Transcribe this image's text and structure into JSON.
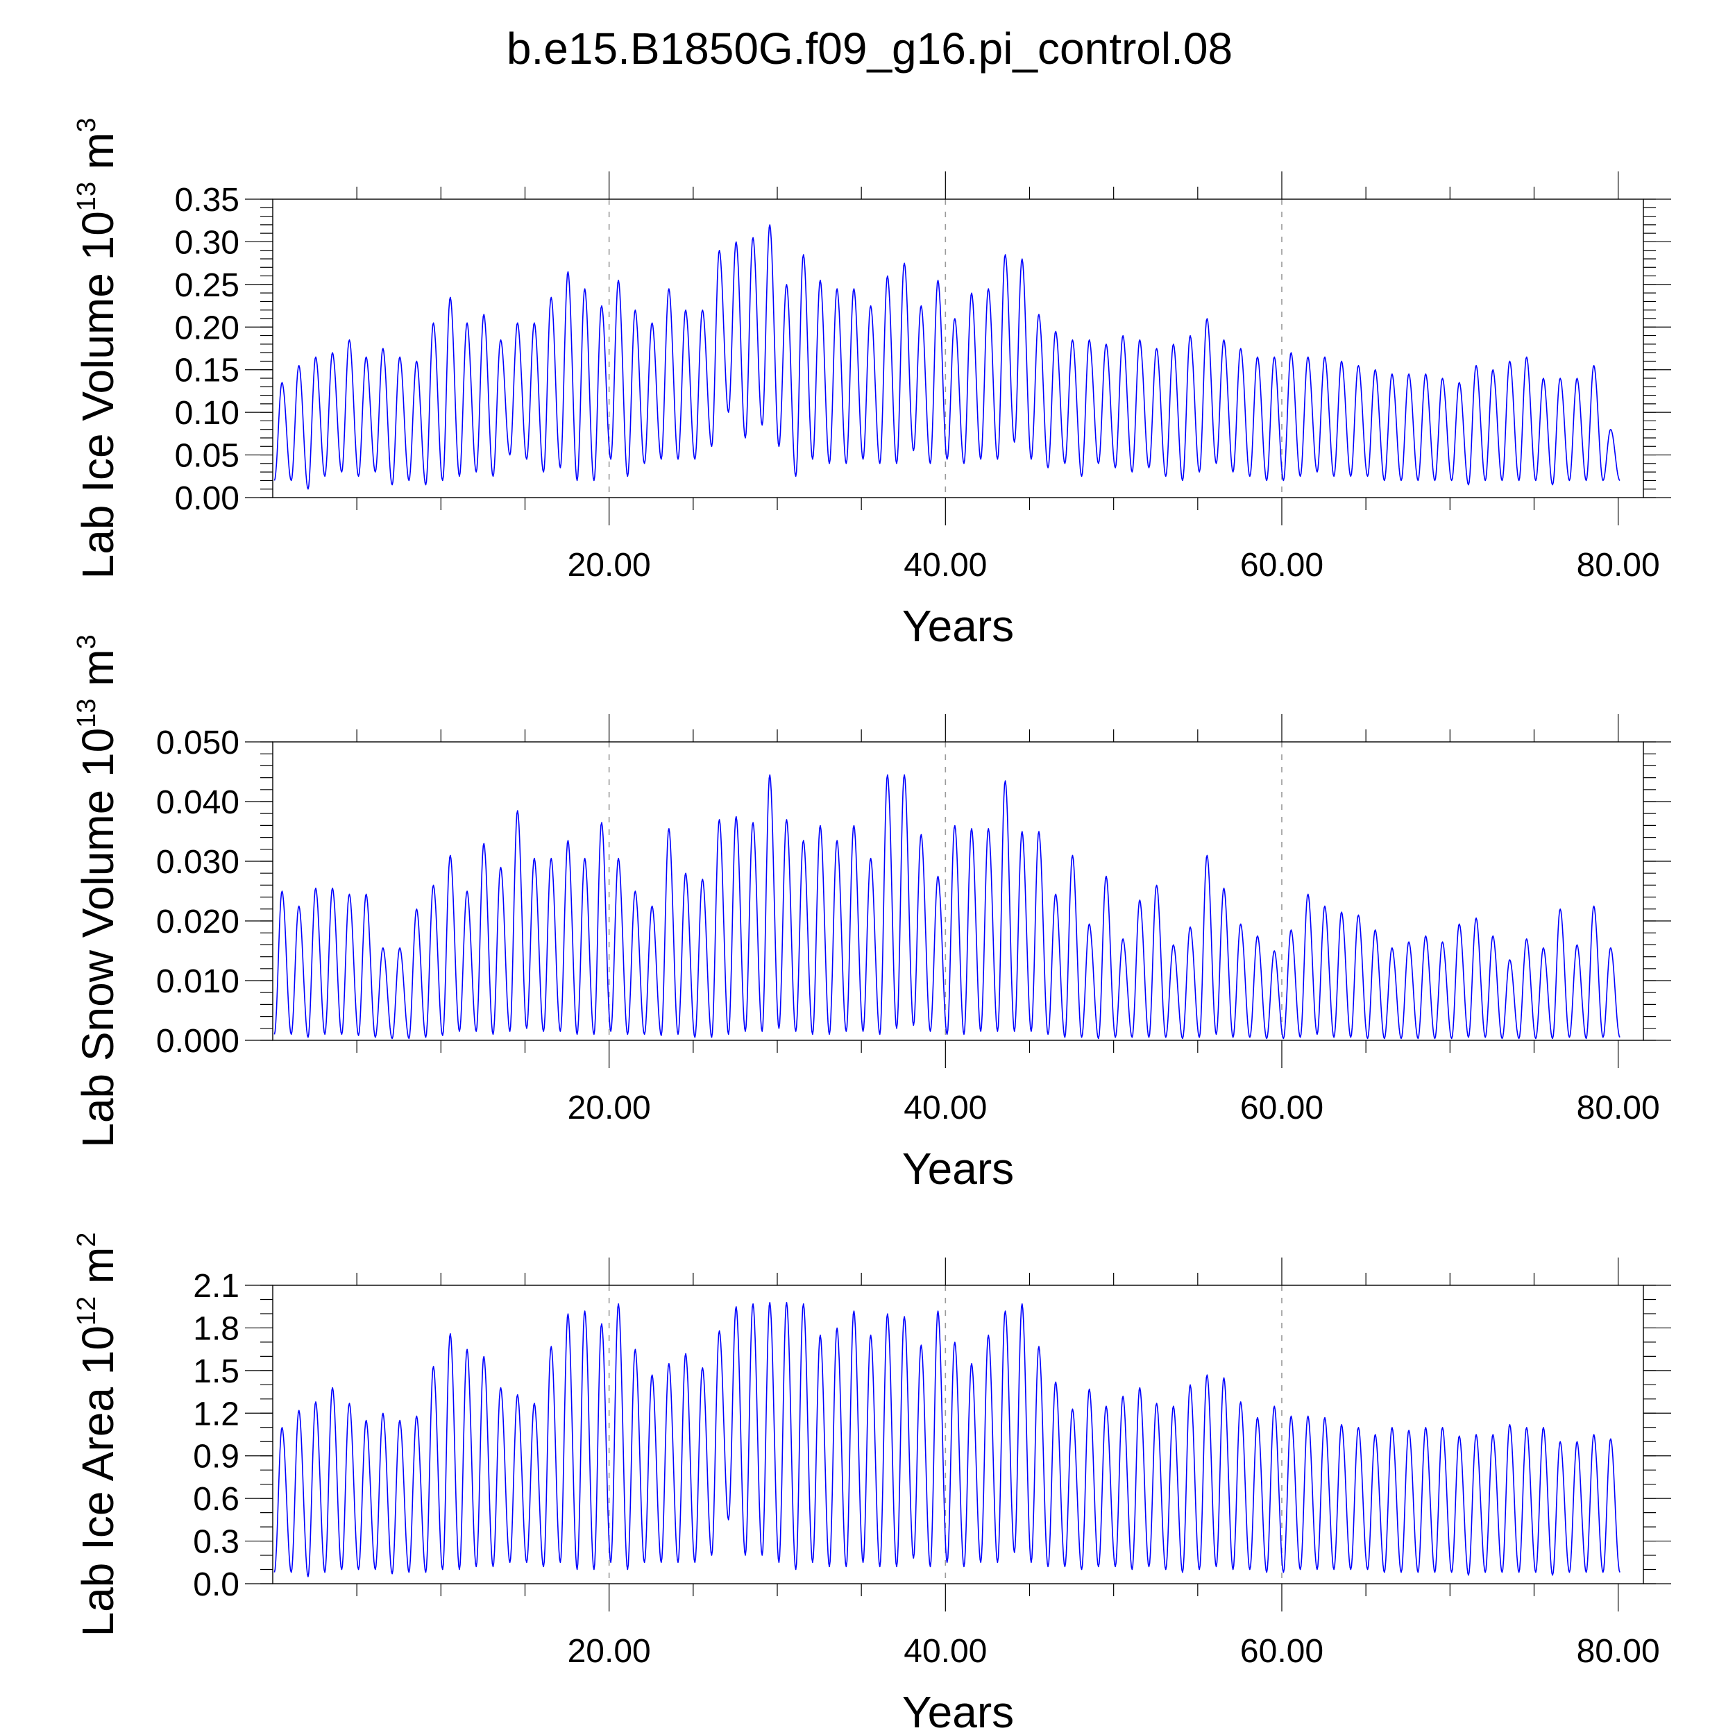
{
  "title": "b.e15.B1850G.f09_g16.pi_control.08",
  "colors": {
    "series": "#0000ff",
    "grid": "#9a9a9a",
    "frame": "#000000"
  },
  "chart_data": [
    {
      "type": "line",
      "title": "",
      "xlabel": "Years",
      "ylabel": {
        "text": "Lab Ice Volume 10",
        "exp": "13",
        "unit": " m",
        "unit_exp": "3"
      },
      "xlim": [
        0,
        81.5
      ],
      "ylim": [
        0,
        0.35
      ],
      "xticks": [
        20,
        40,
        60,
        80
      ],
      "xtick_labels": [
        "20.00",
        "40.00",
        "60.00",
        "80.00"
      ],
      "xminor": [
        5,
        10,
        15,
        25,
        30,
        35,
        45,
        50,
        55,
        65,
        70,
        75
      ],
      "yticks": [
        0,
        0.05,
        0.1,
        0.15,
        0.2,
        0.25,
        0.3,
        0.35
      ],
      "ytick_labels": [
        "0.00",
        "0.05",
        "0.10",
        "0.15",
        "0.20",
        "0.25",
        "0.30",
        "0.35"
      ],
      "yminor_step": 0.01,
      "grid_x": [
        20,
        40,
        60
      ],
      "series": [
        {
          "peaks": [
            0.135,
            0.155,
            0.165,
            0.17,
            0.185,
            0.165,
            0.175,
            0.165,
            0.16,
            0.205,
            0.235,
            0.205,
            0.215,
            0.185,
            0.205,
            0.205,
            0.235,
            0.265,
            0.245,
            0.225,
            0.255,
            0.22,
            0.205,
            0.245,
            0.22,
            0.22,
            0.29,
            0.3,
            0.305,
            0.32,
            0.25,
            0.285,
            0.255,
            0.245,
            0.245,
            0.225,
            0.26,
            0.275,
            0.225,
            0.255,
            0.21,
            0.24,
            0.245,
            0.285,
            0.28,
            0.215,
            0.195,
            0.185,
            0.185,
            0.18,
            0.19,
            0.185,
            0.175,
            0.18,
            0.19,
            0.21,
            0.185,
            0.175,
            0.165,
            0.165,
            0.17,
            0.165,
            0.165,
            0.16,
            0.155,
            0.15,
            0.145,
            0.145,
            0.145,
            0.14,
            0.135,
            0.155,
            0.15,
            0.16,
            0.165,
            0.14,
            0.14,
            0.14,
            0.155,
            0.08
          ],
          "troughs": [
            0.02,
            0.01,
            0.025,
            0.03,
            0.025,
            0.03,
            0.015,
            0.02,
            0.015,
            0.02,
            0.025,
            0.03,
            0.025,
            0.05,
            0.045,
            0.03,
            0.035,
            0.02,
            0.02,
            0.045,
            0.025,
            0.04,
            0.045,
            0.045,
            0.045,
            0.06,
            0.1,
            0.07,
            0.085,
            0.06,
            0.025,
            0.045,
            0.04,
            0.04,
            0.045,
            0.04,
            0.04,
            0.055,
            0.04,
            0.045,
            0.04,
            0.045,
            0.045,
            0.065,
            0.045,
            0.035,
            0.04,
            0.025,
            0.04,
            0.035,
            0.03,
            0.035,
            0.025,
            0.02,
            0.03,
            0.04,
            0.03,
            0.025,
            0.02,
            0.02,
            0.025,
            0.03,
            0.025,
            0.025,
            0.025,
            0.02,
            0.02,
            0.02,
            0.02,
            0.02,
            0.015,
            0.02,
            0.02,
            0.02,
            0.02,
            0.015,
            0.02,
            0.02,
            0.02,
            0.02
          ]
        }
      ]
    },
    {
      "type": "line",
      "title": "",
      "xlabel": "Years",
      "ylabel": {
        "text": "Lab Snow Volume 10",
        "exp": "13",
        "unit": " m",
        "unit_exp": "3"
      },
      "xlim": [
        0,
        81.5
      ],
      "ylim": [
        0,
        0.05
      ],
      "xticks": [
        20,
        40,
        60,
        80
      ],
      "xtick_labels": [
        "20.00",
        "40.00",
        "60.00",
        "80.00"
      ],
      "xminor": [
        5,
        10,
        15,
        25,
        30,
        35,
        45,
        50,
        55,
        65,
        70,
        75
      ],
      "yticks": [
        0,
        0.01,
        0.02,
        0.03,
        0.04,
        0.05
      ],
      "ytick_labels": [
        "0.000",
        "0.010",
        "0.020",
        "0.030",
        "0.040",
        "0.050"
      ],
      "yminor_step": 0.002,
      "grid_x": [
        20,
        40,
        60
      ],
      "series": [
        {
          "peaks": [
            0.025,
            0.0225,
            0.0255,
            0.0255,
            0.0245,
            0.0245,
            0.0155,
            0.0155,
            0.022,
            0.026,
            0.031,
            0.025,
            0.033,
            0.029,
            0.0385,
            0.0305,
            0.0305,
            0.0335,
            0.0305,
            0.0365,
            0.0305,
            0.025,
            0.0225,
            0.0355,
            0.028,
            0.027,
            0.037,
            0.0375,
            0.0365,
            0.0445,
            0.037,
            0.0335,
            0.036,
            0.0335,
            0.036,
            0.0305,
            0.0445,
            0.0445,
            0.0345,
            0.0275,
            0.036,
            0.0355,
            0.0355,
            0.0435,
            0.035,
            0.035,
            0.0245,
            0.031,
            0.0195,
            0.0275,
            0.017,
            0.0235,
            0.026,
            0.016,
            0.019,
            0.031,
            0.0255,
            0.0195,
            0.0175,
            0.015,
            0.0185,
            0.0245,
            0.0225,
            0.0215,
            0.021,
            0.0185,
            0.0155,
            0.0165,
            0.0175,
            0.0165,
            0.0195,
            0.0205,
            0.0175,
            0.0135,
            0.017,
            0.0155,
            0.022,
            0.016,
            0.0225,
            0.0155
          ],
          "troughs": [
            0.001,
            0.0005,
            0.001,
            0.001,
            0.0008,
            0.0005,
            0.0003,
            0.0003,
            0.0005,
            0.0008,
            0.0015,
            0.0015,
            0.001,
            0.0015,
            0.002,
            0.0015,
            0.0015,
            0.001,
            0.001,
            0.0015,
            0.001,
            0.001,
            0.0008,
            0.001,
            0.0005,
            0.0005,
            0.001,
            0.0015,
            0.0015,
            0.002,
            0.0015,
            0.001,
            0.001,
            0.0015,
            0.0015,
            0.001,
            0.002,
            0.0025,
            0.0015,
            0.001,
            0.001,
            0.0015,
            0.0015,
            0.0015,
            0.0015,
            0.001,
            0.0005,
            0.0005,
            0.0003,
            0.0005,
            0.0005,
            0.0005,
            0.0005,
            0.0003,
            0.0005,
            0.001,
            0.0005,
            0.0005,
            0.0003,
            0.0003,
            0.0005,
            0.001,
            0.0005,
            0.0005,
            0.0003,
            0.0003,
            0.0003,
            0.0003,
            0.0003,
            0.0003,
            0.0005,
            0.0005,
            0.0003,
            0.0003,
            0.0003,
            0.0003,
            0.0005,
            0.0003,
            0.0005,
            0.0005
          ]
        }
      ]
    },
    {
      "type": "line",
      "title": "",
      "xlabel": "Years",
      "ylabel": {
        "text": "Lab Ice Area 10",
        "exp": "12",
        "unit": " m",
        "unit_exp": "2"
      },
      "xlim": [
        0,
        81.5
      ],
      "ylim": [
        0,
        2.1
      ],
      "xticks": [
        20,
        40,
        60,
        80
      ],
      "xtick_labels": [
        "20.00",
        "40.00",
        "60.00",
        "80.00"
      ],
      "xminor": [
        5,
        10,
        15,
        25,
        30,
        35,
        45,
        50,
        55,
        65,
        70,
        75
      ],
      "yticks": [
        0,
        0.3,
        0.6,
        0.9,
        1.2,
        1.5,
        1.8,
        2.1
      ],
      "ytick_labels": [
        "0.0",
        "0.3",
        "0.6",
        "0.9",
        "1.2",
        "1.5",
        "1.8",
        "2.1"
      ],
      "yminor_step": 0.1,
      "grid_x": [
        20,
        40,
        60
      ],
      "series": [
        {
          "peaks": [
            1.1,
            1.22,
            1.28,
            1.38,
            1.27,
            1.15,
            1.2,
            1.15,
            1.18,
            1.53,
            1.76,
            1.65,
            1.6,
            1.38,
            1.33,
            1.27,
            1.67,
            1.9,
            1.92,
            1.83,
            1.97,
            1.65,
            1.47,
            1.55,
            1.62,
            1.52,
            1.78,
            1.95,
            1.97,
            1.98,
            1.98,
            1.97,
            1.75,
            1.8,
            1.92,
            1.75,
            1.9,
            1.88,
            1.68,
            1.92,
            1.7,
            1.55,
            1.75,
            1.92,
            1.97,
            1.67,
            1.42,
            1.23,
            1.37,
            1.25,
            1.32,
            1.38,
            1.27,
            1.25,
            1.4,
            1.47,
            1.45,
            1.28,
            1.17,
            1.25,
            1.18,
            1.18,
            1.17,
            1.12,
            1.1,
            1.05,
            1.1,
            1.08,
            1.1,
            1.1,
            1.04,
            1.05,
            1.05,
            1.12,
            1.1,
            1.1,
            1.0,
            1.0,
            1.05,
            1.02
          ],
          "troughs": [
            0.08,
            0.05,
            0.08,
            0.1,
            0.1,
            0.1,
            0.07,
            0.08,
            0.08,
            0.1,
            0.1,
            0.12,
            0.12,
            0.15,
            0.15,
            0.12,
            0.15,
            0.1,
            0.1,
            0.15,
            0.1,
            0.15,
            0.15,
            0.15,
            0.15,
            0.2,
            0.45,
            0.2,
            0.2,
            0.15,
            0.1,
            0.15,
            0.12,
            0.12,
            0.15,
            0.12,
            0.12,
            0.18,
            0.12,
            0.15,
            0.12,
            0.15,
            0.15,
            0.22,
            0.15,
            0.12,
            0.12,
            0.1,
            0.12,
            0.12,
            0.1,
            0.12,
            0.1,
            0.08,
            0.1,
            0.12,
            0.1,
            0.1,
            0.08,
            0.08,
            0.1,
            0.1,
            0.1,
            0.1,
            0.1,
            0.08,
            0.08,
            0.08,
            0.08,
            0.08,
            0.06,
            0.08,
            0.08,
            0.08,
            0.08,
            0.06,
            0.08,
            0.08,
            0.08,
            0.08
          ]
        }
      ]
    }
  ]
}
